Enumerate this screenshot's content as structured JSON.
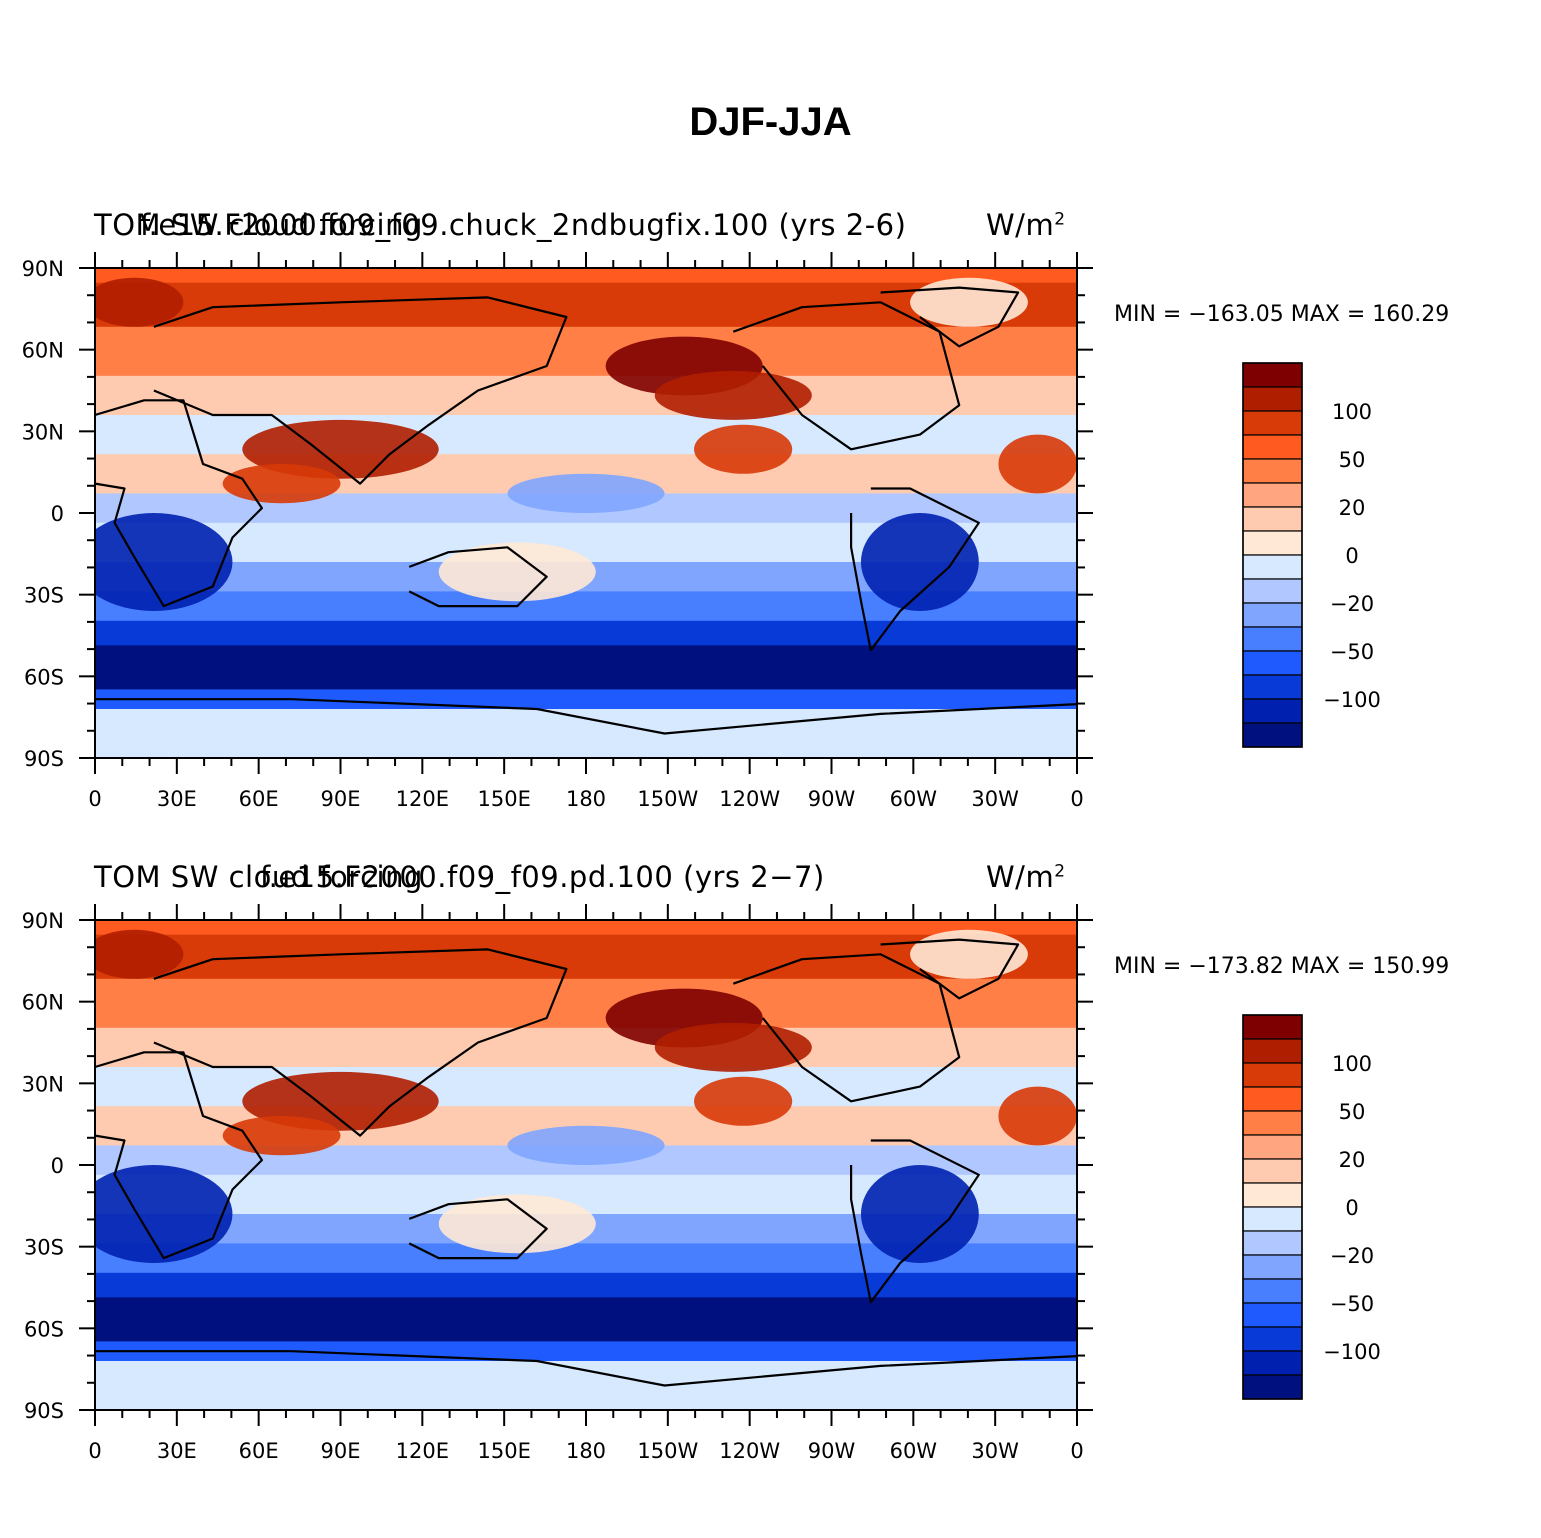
{
  "title": "DJF-JJA",
  "panels": [
    {
      "left_title": "TOM SW cloud forcing",
      "center_title": "f.e15.F2000.f09_f09.chuck_2ndbugfix.100 (yrs 2-6)",
      "units": "W/m",
      "units_sup": "2",
      "stats": "MIN = −163.05  MAX = 160.29"
    },
    {
      "left_title": "TOM SW cloud forcing",
      "center_title": "f.e15.F2000.f09_f09.pd.100 (yrs 2−7)",
      "units": "W/m",
      "units_sup": "2",
      "stats": "MIN = −173.82  MAX = 150.99"
    }
  ],
  "map": {
    "lat_labels": [
      "90N",
      "60N",
      "30N",
      "0",
      "30S",
      "60S",
      "90S"
    ],
    "lon_labels": [
      "0",
      "30E",
      "60E",
      "90E",
      "120E",
      "150E",
      "180",
      "150W",
      "120W",
      "90W",
      "60W",
      "30W",
      "0"
    ]
  },
  "colorbar": {
    "colors": [
      "#7f0000",
      "#b01e00",
      "#d83a08",
      "#ff5a1f",
      "#ff7f47",
      "#ffa580",
      "#ffcbb0",
      "#ffe9d6",
      "#d6e9ff",
      "#b0c8ff",
      "#80a5ff",
      "#477fff",
      "#1f5aff",
      "#083ad8",
      "#0021b0",
      "#00107f"
    ],
    "labels": [
      "100",
      "50",
      "20",
      "0",
      "−20",
      "−50",
      "−100"
    ]
  },
  "colors": {
    "warm": "#ff5a1f",
    "cool": "#0021b0",
    "land_outline": "#000000"
  }
}
